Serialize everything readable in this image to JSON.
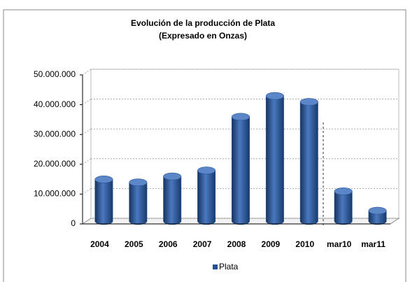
{
  "chart_data": {
    "type": "bar3d",
    "title": "Evolución de la producción de Plata",
    "subtitle": "(Expresado en Onzas)",
    "categories": [
      "2004",
      "2005",
      "2006",
      "2007",
      "2008",
      "2009",
      "2010",
      "mar10",
      "mar11"
    ],
    "series": [
      {
        "name": "Plata",
        "color": "#24508f",
        "values": [
          14000000,
          13000000,
          15000000,
          17000000,
          35000000,
          42000000,
          40000000,
          10000000,
          3500000
        ]
      }
    ],
    "ylim": [
      0,
      50000000
    ],
    "yticks": [
      0,
      {
        "value": 10000000,
        "label": "10.000.000"
      },
      {
        "value": 20000000,
        "label": "20.000.000"
      },
      {
        "value": 30000000,
        "label": "30.000.000"
      },
      {
        "value": 40000000,
        "label": "40.000.000"
      },
      {
        "value": 50000000,
        "label": "50.000.000"
      }
    ],
    "grid": true,
    "legend": "bottom"
  }
}
